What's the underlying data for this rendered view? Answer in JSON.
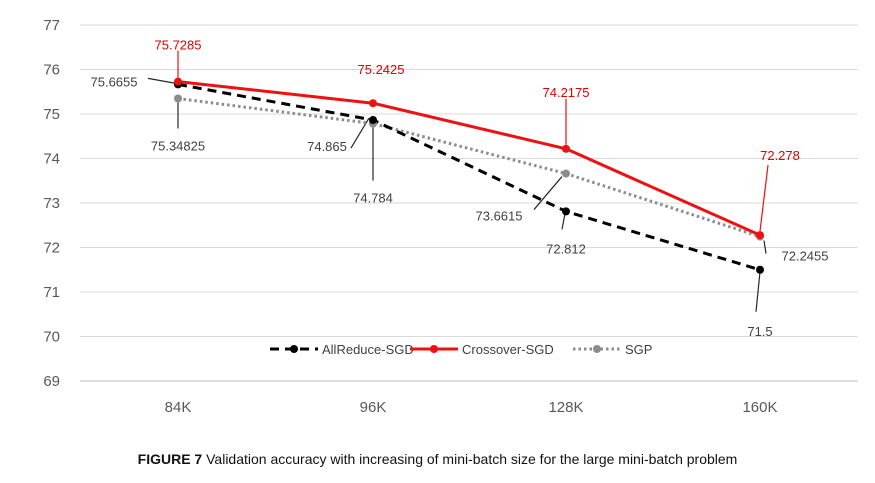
{
  "chart_data": {
    "type": "line",
    "categories": [
      "84K",
      "96K",
      "128K",
      "160K"
    ],
    "ylim": [
      69,
      77
    ],
    "yticks": [
      "69",
      "70",
      "71",
      "72",
      "73",
      "74",
      "75",
      "76",
      "77"
    ],
    "grid": true,
    "legend_position": "bottom-center",
    "series": [
      {
        "name": "AllReduce-SGD",
        "values": [
          75.6655,
          74.865,
          72.812,
          71.5
        ],
        "labels": [
          "75.6655",
          "74.865",
          "72.812",
          "71.5"
        ],
        "color": "#000000",
        "style": "dashed"
      },
      {
        "name": "Crossover-SGD",
        "values": [
          75.7285,
          75.2425,
          74.2175,
          72.278
        ],
        "labels": [
          "75.7285",
          "75.2425",
          "74.2175",
          "72.278"
        ],
        "color": "#ee1111",
        "style": "solid"
      },
      {
        "name": "SGP",
        "values": [
          75.34825,
          74.784,
          73.6615,
          72.2455
        ],
        "labels": [
          "75.34825",
          "74.784",
          "73.6615",
          "72.2455"
        ],
        "color": "#8c8c8c",
        "style": "dotted"
      }
    ]
  },
  "caption": {
    "label": "FIGURE 7",
    "text": " Validation accuracy with increasing of mini-batch size for the large mini-batch problem"
  }
}
